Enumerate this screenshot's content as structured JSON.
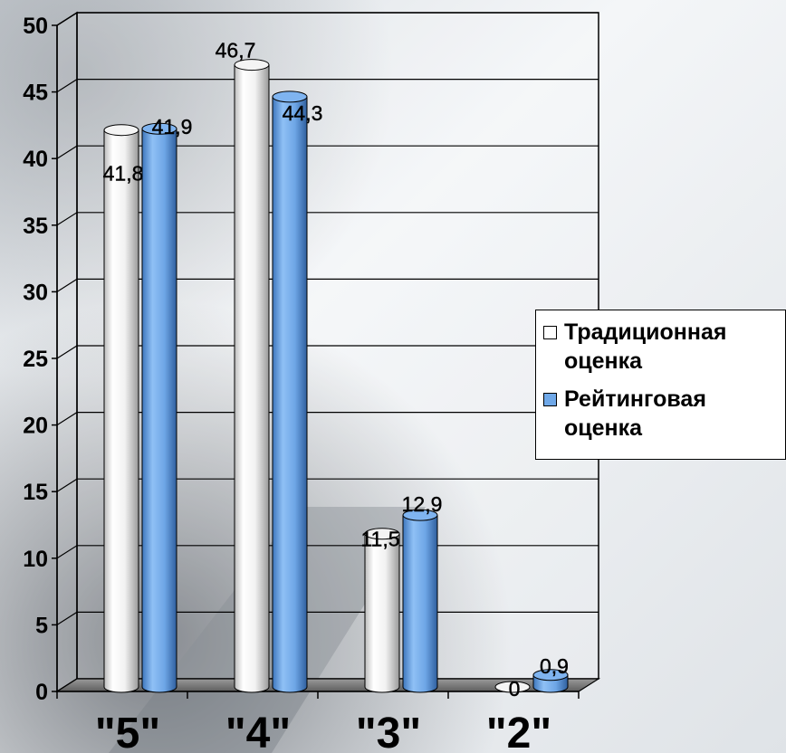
{
  "chart_data": {
    "type": "bar",
    "categories": [
      "\"5\"",
      "\"4\"",
      "\"3\"",
      "\"2\""
    ],
    "series": [
      {
        "name": "Традиционная оценка",
        "values": [
          41.8,
          46.7,
          11.5,
          0
        ],
        "labels": [
          "41,8",
          "46,7",
          "11,5",
          "0"
        ],
        "color": "#ffffff"
      },
      {
        "name": "Рейтинговая оценка",
        "values": [
          41.9,
          44.3,
          12.9,
          0.9
        ],
        "labels": [
          "41,9",
          "44,3",
          "12,9",
          "0,9"
        ],
        "color": "#6fa8e8"
      }
    ],
    "yticks": [
      "0",
      "5",
      "10",
      "15",
      "20",
      "25",
      "30",
      "35",
      "40",
      "45",
      "50"
    ],
    "ylim": [
      0,
      50
    ],
    "grid": true,
    "legend_position": "right"
  },
  "legend": {
    "items": [
      {
        "label_line1": "Традиционная",
        "label_line2": "оценка",
        "color": "#ffffff"
      },
      {
        "label_line1": "Рейтинговая",
        "label_line2": "оценка",
        "color": "#6fa8e8"
      }
    ]
  }
}
